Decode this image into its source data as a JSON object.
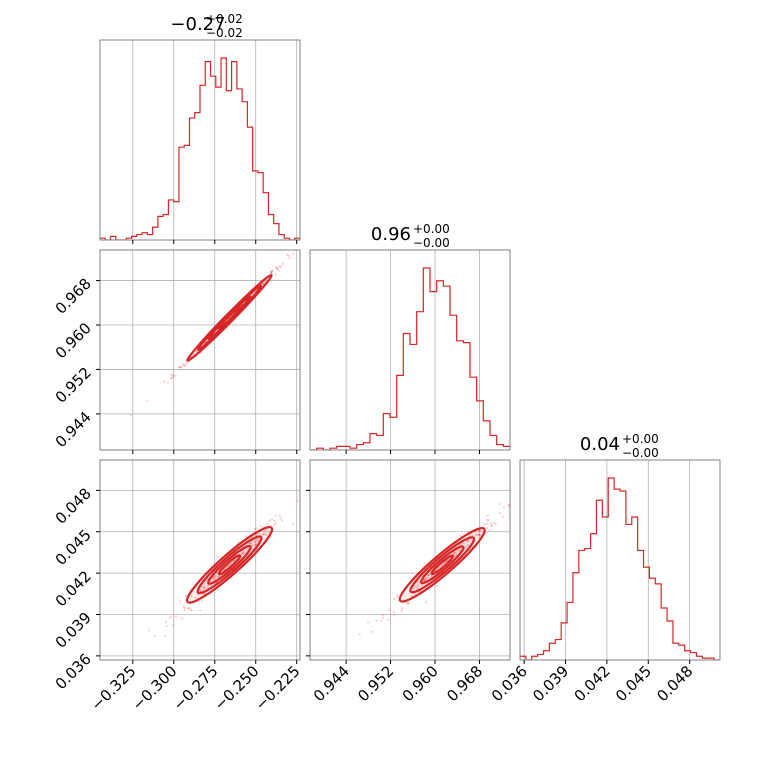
{
  "colors": {
    "accent": "#d62728",
    "grid": "#b0b0b0",
    "frame": "#808080"
  },
  "titles": {
    "p0": {
      "center": "−0.27",
      "upper": "+0.02",
      "lower": "−0.02"
    },
    "p1": {
      "center": "0.96",
      "upper": "+0.00",
      "lower": "−0.00"
    },
    "p2": {
      "center": "0.04",
      "upper": "+0.00",
      "lower": "−0.00"
    }
  },
  "chart_data": {
    "type": "corner",
    "parameters": [
      {
        "range": [
          -0.345,
          -0.223
        ],
        "ticks": [
          -0.325,
          -0.3,
          -0.275,
          -0.25,
          -0.225
        ],
        "tick_labels": [
          "−0.325",
          "−0.300",
          "−0.275",
          "−0.250",
          "−0.225"
        ]
      },
      {
        "range": [
          0.9375,
          0.9735
        ],
        "ticks": [
          0.944,
          0.952,
          0.96,
          0.968
        ],
        "tick_labels": [
          "0.944",
          "0.952",
          "0.960",
          "0.968"
        ]
      },
      {
        "range": [
          0.0357,
          0.0502
        ],
        "ticks": [
          0.036,
          0.039,
          0.042,
          0.045,
          0.048
        ],
        "tick_labels": [
          "0.036",
          "0.039",
          "0.042",
          "0.045",
          "0.048"
        ]
      }
    ],
    "histograms": [
      {
        "param": 0,
        "edges_from": -0.345,
        "edges_to": -0.223,
        "counts": [
          1,
          0,
          2,
          0,
          0,
          1,
          2,
          3,
          4,
          3,
          7,
          13,
          14,
          22,
          21,
          51,
          52,
          67,
          70,
          85,
          98,
          90,
          84,
          100,
          82,
          98,
          83,
          76,
          62,
          38,
          37,
          26,
          14,
          9,
          3,
          1,
          0,
          1
        ]
      },
      {
        "param": 1,
        "edges_from": 0.9375,
        "edges_to": 0.9735,
        "counts": [
          0,
          1,
          0,
          1,
          2,
          2,
          1,
          3,
          4,
          9,
          8,
          20,
          18,
          41,
          64,
          58,
          76,
          100,
          87,
          93,
          90,
          74,
          60,
          59,
          40,
          27,
          16,
          8,
          3,
          2
        ]
      },
      {
        "param": 2,
        "edges_from": 0.0357,
        "edges_to": 0.0502,
        "counts": [
          2,
          0,
          2,
          3,
          5,
          9,
          11,
          20,
          31,
          47,
          59,
          60,
          68,
          86,
          77,
          98,
          92,
          91,
          73,
          77,
          59,
          50,
          44,
          41,
          28,
          21,
          9,
          8,
          5,
          4,
          2,
          1,
          1,
          0
        ]
      }
    ],
    "pairs": [
      {
        "x": 0,
        "y": 1,
        "center": [
          -0.266,
          0.9613
        ],
        "slope": 0.3,
        "spread": 0.00035
      },
      {
        "x": 0,
        "y": 2,
        "center": [
          -0.266,
          0.0426
        ],
        "slope": 0.105,
        "spread": 0.00035
      },
      {
        "x": 1,
        "y": 2,
        "center": [
          0.9613,
          0.0426
        ],
        "slope": 0.345,
        "spread": 0.00035
      }
    ],
    "grid": true
  }
}
